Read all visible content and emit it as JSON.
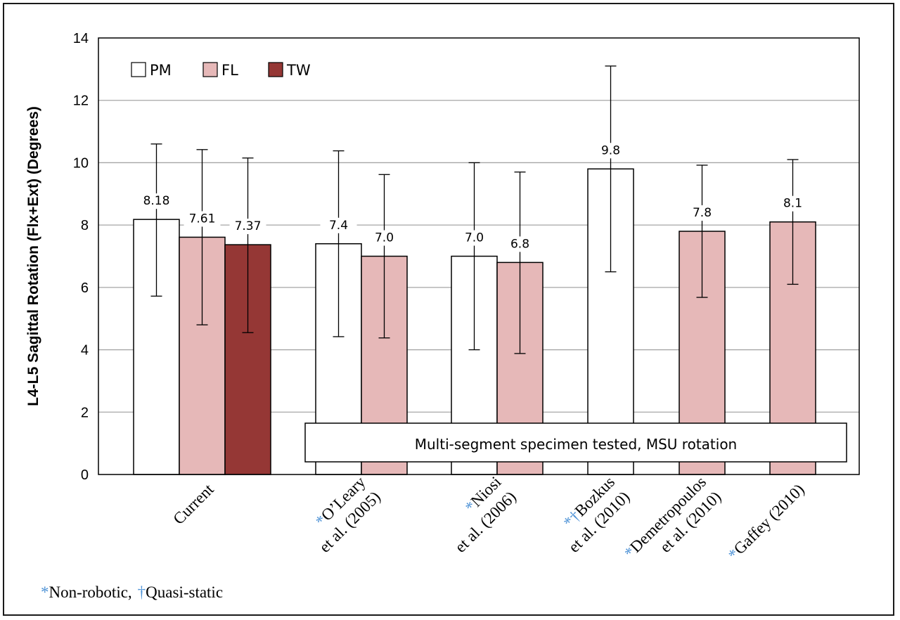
{
  "chart_data": {
    "type": "bar",
    "title": "",
    "ylabel": "L4-L5 Sagittal Rotation (Flx+Ext) (Degrees)",
    "xlabel": "",
    "ylim": [
      0,
      14
    ],
    "yticks": [
      0,
      2,
      4,
      6,
      8,
      10,
      12,
      14
    ],
    "grid": true,
    "legend_position": "top-left",
    "series_meta": [
      {
        "name": "PM",
        "color": "#ffffff"
      },
      {
        "name": "FL",
        "color": "#e6b8b8"
      },
      {
        "name": "TW",
        "color": "#953735"
      }
    ],
    "groups": [
      {
        "lines": [
          {
            "mark": "",
            "text": "Current"
          }
        ],
        "bars": [
          {
            "series": "PM",
            "value": 8.18,
            "err_hi": 10.6,
            "err_lo": 5.72,
            "label": "8.18"
          },
          {
            "series": "FL",
            "value": 7.61,
            "err_hi": 10.42,
            "err_lo": 4.8,
            "label": "7.61"
          },
          {
            "series": "TW",
            "value": 7.37,
            "err_hi": 10.15,
            "err_lo": 4.55,
            "label": "7.37"
          }
        ]
      },
      {
        "lines": [
          {
            "mark": "*",
            "text": "O’Leary"
          },
          {
            "mark": "",
            "text": "et al. (2005)"
          }
        ],
        "bars": [
          {
            "series": "PM",
            "value": 7.4,
            "err_hi": 10.38,
            "err_lo": 4.42,
            "label": "7.4"
          },
          {
            "series": "FL",
            "value": 7.0,
            "err_hi": 9.62,
            "err_lo": 4.38,
            "label": "7.0"
          }
        ]
      },
      {
        "lines": [
          {
            "mark": "*",
            "text": "Niosi"
          },
          {
            "mark": "",
            "text": "et al. (2006)"
          }
        ],
        "bars": [
          {
            "series": "PM",
            "value": 7.0,
            "err_hi": 10.0,
            "err_lo": 4.0,
            "label": "7.0"
          },
          {
            "series": "FL",
            "value": 6.8,
            "err_hi": 9.7,
            "err_lo": 3.88,
            "label": "6.8"
          }
        ]
      },
      {
        "lines": [
          {
            "mark": "*†",
            "text": "Bozkus"
          },
          {
            "mark": "",
            "text": "et al. (2010)"
          }
        ],
        "bars": [
          {
            "series": "PM",
            "value": 9.8,
            "err_hi": 13.1,
            "err_lo": 6.5,
            "label": "9.8"
          }
        ]
      },
      {
        "lines": [
          {
            "mark": "*",
            "text": "Demetropoulos"
          },
          {
            "mark": "",
            "text": "et al. (2010)"
          }
        ],
        "bars": [
          {
            "series": "FL",
            "value": 7.8,
            "err_hi": 9.92,
            "err_lo": 5.68,
            "label": "7.8"
          }
        ]
      },
      {
        "lines": [
          {
            "mark": "*",
            "text": "Gaffey  (2010)"
          }
        ],
        "bars": [
          {
            "series": "FL",
            "value": 8.1,
            "err_hi": 10.1,
            "err_lo": 6.1,
            "label": "8.1"
          }
        ]
      }
    ],
    "annotation": "Multi-segment specimen tested, MSU rotation"
  },
  "footnote": {
    "mark1": "*",
    "text1": "Non-robotic,",
    "mark2": "†",
    "text2": "Quasi-static"
  },
  "colors": {
    "grid": "#a6a6a6",
    "axis": "#000000",
    "accent_mark": "#4f93d6"
  }
}
